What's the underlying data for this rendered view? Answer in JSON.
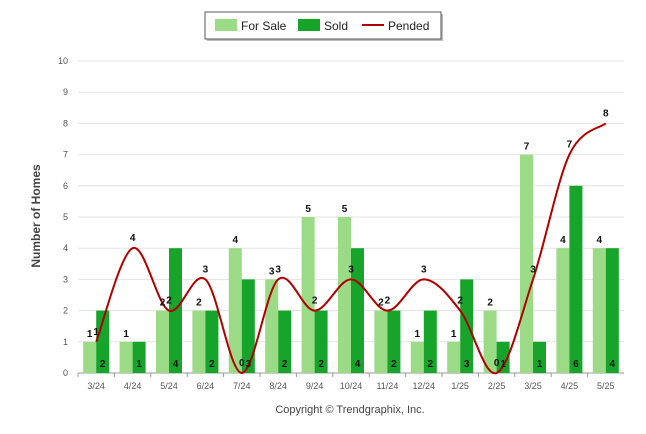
{
  "chart_data": {
    "type": "bar",
    "categories": [
      "3/24",
      "4/24",
      "5/24",
      "6/24",
      "7/24",
      "8/24",
      "9/24",
      "10/24",
      "11/24",
      "12/24",
      "1/25",
      "2/25",
      "3/25",
      "4/25",
      "5/25"
    ],
    "series": [
      {
        "name": "For Sale",
        "type": "bar",
        "color": "#9bdb86",
        "values": [
          1,
          1,
          2,
          2,
          4,
          3,
          5,
          5,
          2,
          1,
          1,
          2,
          7,
          4,
          4
        ]
      },
      {
        "name": "Sold",
        "type": "bar",
        "color": "#16a42a",
        "values": [
          2,
          1,
          4,
          2,
          3,
          2,
          2,
          4,
          2,
          2,
          3,
          1,
          1,
          6,
          4
        ]
      },
      {
        "name": "Pended",
        "type": "line",
        "color": "#b00000",
        "values": [
          1,
          4,
          2,
          3,
          0,
          3,
          2,
          3,
          2,
          3,
          2,
          0,
          3,
          7,
          8
        ]
      }
    ],
    "ylabel": "Number of Homes",
    "xlabel": "",
    "ylim": [
      0,
      10
    ],
    "yticks": [
      "0",
      "1",
      "2",
      "3",
      "4",
      "5",
      "6",
      "7",
      "8",
      "9",
      "10"
    ],
    "grid": true,
    "legend_position": "top-center"
  },
  "footer": {
    "copyright": "Copyright © Trendgraphix, Inc."
  }
}
